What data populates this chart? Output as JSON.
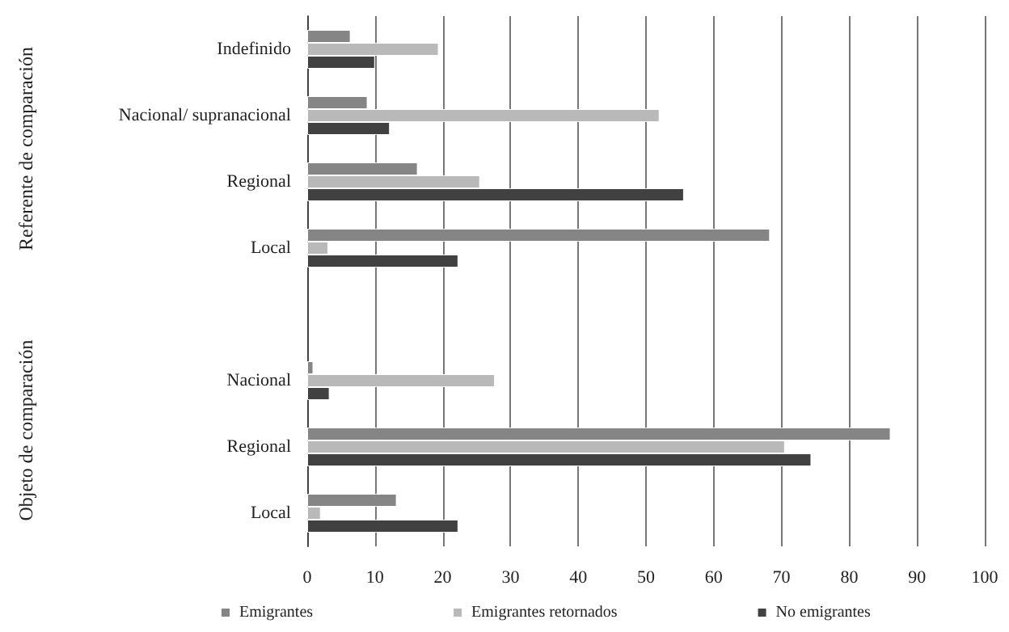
{
  "chart_data": {
    "type": "bar",
    "orientation": "horizontal",
    "categories": [
      "Indefinido",
      "Nacional/ supranacional",
      "Regional",
      "Local",
      null,
      "Nacional",
      "Regional",
      "Local"
    ],
    "series": [
      {
        "name": "Emigrantes",
        "color": "#858585",
        "values": [
          6.4,
          8.9,
          16.3,
          68.3,
          null,
          0.9,
          86.1,
          13.2
        ]
      },
      {
        "name": "Emigrantes retornados",
        "color": "#b9b9b9",
        "values": [
          19.4,
          52.0,
          25.5,
          3.1,
          null,
          27.7,
          70.5,
          2.0
        ]
      },
      {
        "name": "No emigrantes",
        "color": "#414141",
        "values": [
          10.0,
          12.2,
          55.6,
          22.3,
          null,
          3.3,
          74.4,
          22.3
        ]
      }
    ],
    "xlim": [
      0,
      100
    ],
    "xticks": [
      0,
      10,
      20,
      30,
      40,
      50,
      60,
      70,
      80,
      90,
      100
    ],
    "grid": "x",
    "legend": "bottom",
    "annotations": [
      "Referente de comparación",
      "Objeto de comparación"
    ]
  }
}
